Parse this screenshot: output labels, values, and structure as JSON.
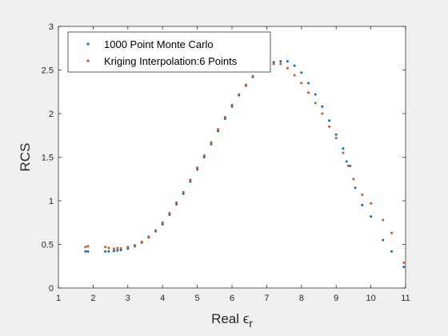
{
  "colors": {
    "figure_bg": "#f0f0f0",
    "axes_bg": "#ffffff",
    "axis_line": "#262626",
    "series_monte_carlo": "#0072bd",
    "series_kriging": "#d95319"
  },
  "chart_data": {
    "type": "scatter",
    "title": "",
    "xlabel_main": "Real ",
    "xlabel_symbol": "ϵ",
    "xlabel_subscript": "r",
    "ylabel": "RCS",
    "xlim": [
      1,
      11
    ],
    "ylim": [
      0,
      3
    ],
    "xticks": [
      "1",
      "2",
      "3",
      "4",
      "5",
      "6",
      "7",
      "8",
      "9",
      "10",
      "11"
    ],
    "yticks": [
      "0",
      "0.5",
      "1",
      "1.5",
      "2",
      "2.5",
      "3"
    ],
    "grid": false,
    "legend_position": "top-left",
    "series": [
      {
        "name": "1000 Point Monte Carlo",
        "color": "#0072bd",
        "points": [
          [
            1.78,
            0.42
          ],
          [
            1.85,
            0.42
          ],
          [
            2.35,
            0.42
          ],
          [
            2.45,
            0.42
          ],
          [
            2.6,
            0.425
          ],
          [
            2.7,
            0.43
          ],
          [
            2.8,
            0.435
          ],
          [
            3.0,
            0.45
          ],
          [
            3.2,
            0.48
          ],
          [
            3.4,
            0.52
          ],
          [
            3.6,
            0.58
          ],
          [
            3.8,
            0.65
          ],
          [
            4.0,
            0.73
          ],
          [
            4.2,
            0.84
          ],
          [
            4.4,
            0.96
          ],
          [
            4.6,
            1.08
          ],
          [
            4.8,
            1.22
          ],
          [
            5.0,
            1.36
          ],
          [
            5.2,
            1.5
          ],
          [
            5.4,
            1.65
          ],
          [
            5.6,
            1.8
          ],
          [
            5.8,
            1.94
          ],
          [
            6.0,
            2.08
          ],
          [
            6.2,
            2.21
          ],
          [
            6.4,
            2.32
          ],
          [
            6.6,
            2.42
          ],
          [
            6.8,
            2.5
          ],
          [
            7.0,
            2.55
          ],
          [
            7.2,
            2.59
          ],
          [
            7.4,
            2.6
          ],
          [
            7.6,
            2.6
          ],
          [
            7.8,
            2.55
          ],
          [
            8.0,
            2.47
          ],
          [
            8.2,
            2.35
          ],
          [
            8.4,
            2.22
          ],
          [
            8.6,
            2.08
          ],
          [
            8.8,
            1.92
          ],
          [
            9.0,
            1.76
          ],
          [
            9.2,
            1.6
          ],
          [
            9.3,
            1.45
          ],
          [
            9.4,
            1.4
          ],
          [
            9.55,
            1.15
          ],
          [
            9.75,
            0.95
          ],
          [
            10.0,
            0.82
          ],
          [
            10.35,
            0.55
          ],
          [
            10.6,
            0.42
          ],
          [
            10.95,
            0.24
          ]
        ]
      },
      {
        "name": "Kriging Interpolation:6 Points",
        "color": "#d95319",
        "points": [
          [
            1.78,
            0.47
          ],
          [
            1.85,
            0.48
          ],
          [
            2.35,
            0.47
          ],
          [
            2.45,
            0.46
          ],
          [
            2.6,
            0.45
          ],
          [
            2.7,
            0.455
          ],
          [
            2.8,
            0.455
          ],
          [
            3.0,
            0.47
          ],
          [
            3.2,
            0.49
          ],
          [
            3.4,
            0.53
          ],
          [
            3.6,
            0.59
          ],
          [
            3.8,
            0.66
          ],
          [
            4.0,
            0.75
          ],
          [
            4.2,
            0.86
          ],
          [
            4.4,
            0.98
          ],
          [
            4.6,
            1.1
          ],
          [
            4.8,
            1.24
          ],
          [
            5.0,
            1.38
          ],
          [
            5.2,
            1.52
          ],
          [
            5.4,
            1.67
          ],
          [
            5.6,
            1.82
          ],
          [
            5.8,
            1.96
          ],
          [
            6.0,
            2.1
          ],
          [
            6.2,
            2.22
          ],
          [
            6.4,
            2.33
          ],
          [
            6.6,
            2.43
          ],
          [
            6.8,
            2.5
          ],
          [
            7.0,
            2.55
          ],
          [
            7.2,
            2.57
          ],
          [
            7.4,
            2.57
          ],
          [
            7.6,
            2.52
          ],
          [
            7.8,
            2.44
          ],
          [
            8.0,
            2.35
          ],
          [
            8.2,
            2.24
          ],
          [
            8.4,
            2.12
          ],
          [
            8.6,
            2.0
          ],
          [
            8.8,
            1.85
          ],
          [
            9.0,
            1.72
          ],
          [
            9.2,
            1.55
          ],
          [
            9.35,
            1.4
          ],
          [
            9.5,
            1.25
          ],
          [
            9.75,
            1.07
          ],
          [
            10.0,
            0.97
          ],
          [
            10.35,
            0.78
          ],
          [
            10.6,
            0.63
          ],
          [
            10.95,
            0.29
          ]
        ]
      }
    ]
  }
}
